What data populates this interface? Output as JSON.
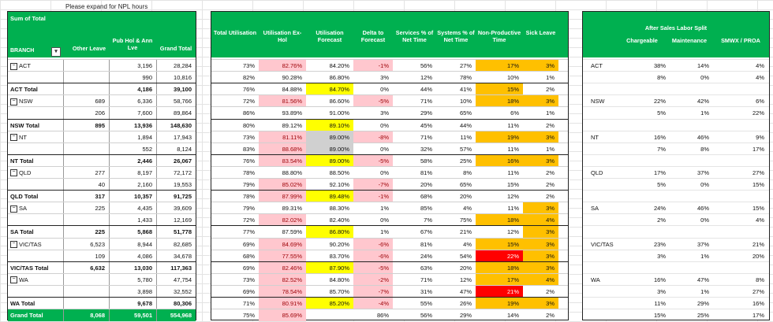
{
  "note": "Please expand for NPL hours",
  "pivot": {
    "title": "Sum of Total",
    "branch_label": "BRANCH",
    "headers": [
      "Other Leave",
      "Pub Hol & Ann Lve",
      "Grand Total"
    ],
    "rows": [
      {
        "label": "ACT",
        "group": true,
        "vals": [
          "",
          "3,196",
          "28,284"
        ]
      },
      {
        "label": "",
        "vals": [
          "",
          "990",
          "10,816"
        ]
      },
      {
        "label": "ACT Total",
        "total": true,
        "vals": [
          "",
          "4,186",
          "39,100"
        ]
      },
      {
        "label": "NSW",
        "group": true,
        "vals": [
          "689",
          "6,336",
          "58,766"
        ]
      },
      {
        "label": "",
        "vals": [
          "206",
          "7,600",
          "89,864"
        ]
      },
      {
        "label": "NSW Total",
        "total": true,
        "vals": [
          "895",
          "13,936",
          "148,630"
        ]
      },
      {
        "label": "NT",
        "group": true,
        "vals": [
          "",
          "1,894",
          "17,943"
        ]
      },
      {
        "label": "",
        "vals": [
          "",
          "552",
          "8,124"
        ]
      },
      {
        "label": "NT Total",
        "total": true,
        "vals": [
          "",
          "2,446",
          "26,067"
        ]
      },
      {
        "label": "QLD",
        "group": true,
        "vals": [
          "277",
          "8,197",
          "72,172"
        ]
      },
      {
        "label": "",
        "vals": [
          "40",
          "2,160",
          "19,553"
        ]
      },
      {
        "label": "QLD Total",
        "total": true,
        "vals": [
          "317",
          "10,357",
          "91,725"
        ]
      },
      {
        "label": "SA",
        "group": true,
        "vals": [
          "225",
          "4,435",
          "39,609"
        ]
      },
      {
        "label": "",
        "vals": [
          "",
          "1,433",
          "12,169"
        ]
      },
      {
        "label": "SA Total",
        "total": true,
        "vals": [
          "225",
          "5,868",
          "51,778"
        ]
      },
      {
        "label": "VIC/TAS",
        "group": true,
        "vals": [
          "6,523",
          "8,944",
          "82,685"
        ]
      },
      {
        "label": "",
        "vals": [
          "109",
          "4,086",
          "34,678"
        ]
      },
      {
        "label": "VIC/TAS Total",
        "total": true,
        "vals": [
          "6,632",
          "13,030",
          "117,363"
        ]
      },
      {
        "label": "WA",
        "group": true,
        "vals": [
          "",
          "5,780",
          "47,754"
        ]
      },
      {
        "label": "",
        "vals": [
          "",
          "3,898",
          "32,552"
        ]
      },
      {
        "label": "WA Total",
        "total": true,
        "vals": [
          "",
          "9,678",
          "80,306"
        ]
      },
      {
        "label": "Grand Total",
        "grand": true,
        "vals": [
          "8,068",
          "59,501",
          "554,968"
        ]
      }
    ]
  },
  "metrics": {
    "headers": [
      "Total Utilisation",
      "Utilisation Ex-Hol",
      "Utilisation Forecast",
      "Delta to Forecast",
      "Services % of Net Time",
      "Systems % of Net Time",
      "Non-Productive Time",
      "Sick Leave"
    ],
    "rows": [
      {
        "v": [
          "73%",
          "82.76%",
          "84.20%",
          "-1%",
          "56%",
          "27%",
          "17%",
          "3%"
        ],
        "c": [
          "",
          "pk",
          "",
          "pk",
          "",
          "",
          "or",
          "or"
        ]
      },
      {
        "v": [
          "82%",
          "90.28%",
          "86.80%",
          "3%",
          "12%",
          "78%",
          "10%",
          "1%"
        ],
        "c": [
          "",
          "",
          "",
          "",
          "",
          "",
          "",
          ""
        ]
      },
      {
        "v": [
          "76%",
          "84.88%",
          "84.70%",
          "0%",
          "44%",
          "41%",
          "15%",
          "2%"
        ],
        "c": [
          "",
          "",
          "ye",
          "",
          "",
          "",
          "or",
          ""
        ]
      },
      {
        "v": [
          "72%",
          "81.56%",
          "86.60%",
          "-5%",
          "71%",
          "10%",
          "18%",
          "3%"
        ],
        "c": [
          "",
          "pk",
          "",
          "pk",
          "",
          "",
          "or",
          "or"
        ]
      },
      {
        "v": [
          "86%",
          "93.89%",
          "91.00%",
          "3%",
          "29%",
          "65%",
          "6%",
          "1%"
        ],
        "c": [
          "",
          "",
          "",
          "",
          "",
          "",
          "",
          ""
        ]
      },
      {
        "v": [
          "80%",
          "89.12%",
          "89.10%",
          "0%",
          "45%",
          "44%",
          "11%",
          "2%"
        ],
        "c": [
          "",
          "",
          "ye",
          "",
          "",
          "",
          "",
          ""
        ]
      },
      {
        "v": [
          "73%",
          "81.11%",
          "89.00%",
          "-8%",
          "71%",
          "11%",
          "19%",
          "3%"
        ],
        "c": [
          "",
          "pk",
          "gr",
          "pk",
          "",
          "",
          "or",
          "or"
        ]
      },
      {
        "v": [
          "83%",
          "88.68%",
          "89.00%",
          "0%",
          "32%",
          "57%",
          "11%",
          "1%"
        ],
        "c": [
          "",
          "pk",
          "gr",
          "",
          "",
          "",
          "",
          ""
        ]
      },
      {
        "v": [
          "76%",
          "83.54%",
          "89.00%",
          "-5%",
          "58%",
          "25%",
          "16%",
          "3%"
        ],
        "c": [
          "",
          "pk",
          "ye",
          "pk",
          "",
          "",
          "or",
          "or"
        ]
      },
      {
        "v": [
          "78%",
          "88.80%",
          "88.50%",
          "0%",
          "81%",
          "8%",
          "11%",
          "2%"
        ],
        "c": [
          "",
          "",
          "",
          "",
          "",
          "",
          "",
          ""
        ]
      },
      {
        "v": [
          "79%",
          "85.02%",
          "92.10%",
          "-7%",
          "20%",
          "65%",
          "15%",
          "2%"
        ],
        "c": [
          "",
          "pk",
          "",
          "pk",
          "",
          "",
          "",
          ""
        ]
      },
      {
        "v": [
          "78%",
          "87.99%",
          "89.48%",
          "-1%",
          "68%",
          "20%",
          "12%",
          "2%"
        ],
        "c": [
          "",
          "pk",
          "ye",
          "pk",
          "",
          "",
          "",
          ""
        ]
      },
      {
        "v": [
          "79%",
          "89.31%",
          "88.30%",
          "1%",
          "85%",
          "4%",
          "11%",
          "3%"
        ],
        "c": [
          "",
          "",
          "",
          "",
          "",
          "",
          "",
          "or"
        ]
      },
      {
        "v": [
          "72%",
          "82.02%",
          "82.40%",
          "0%",
          "7%",
          "75%",
          "18%",
          "4%"
        ],
        "c": [
          "",
          "pk",
          "",
          "",
          "",
          "",
          "or",
          "or"
        ]
      },
      {
        "v": [
          "77%",
          "87.59%",
          "86.80%",
          "1%",
          "67%",
          "21%",
          "12%",
          "3%"
        ],
        "c": [
          "",
          "",
          "ye",
          "",
          "",
          "",
          "",
          "or"
        ]
      },
      {
        "v": [
          "69%",
          "84.69%",
          "90.20%",
          "-6%",
          "81%",
          "4%",
          "15%",
          "3%"
        ],
        "c": [
          "",
          "pk",
          "",
          "pk",
          "",
          "",
          "or",
          "or"
        ]
      },
      {
        "v": [
          "68%",
          "77.55%",
          "83.70%",
          "-6%",
          "24%",
          "54%",
          "22%",
          "3%"
        ],
        "c": [
          "",
          "pk",
          "",
          "pk",
          "",
          "",
          "rd",
          "or"
        ]
      },
      {
        "v": [
          "69%",
          "82.46%",
          "87.90%",
          "-5%",
          "63%",
          "20%",
          "18%",
          "3%"
        ],
        "c": [
          "",
          "pk",
          "ye",
          "pk",
          "",
          "",
          "or",
          "or"
        ]
      },
      {
        "v": [
          "73%",
          "82.52%",
          "84.80%",
          "-2%",
          "71%",
          "12%",
          "17%",
          "4%"
        ],
        "c": [
          "",
          "pk",
          "",
          "pk",
          "",
          "",
          "or",
          "or"
        ]
      },
      {
        "v": [
          "69%",
          "78.54%",
          "85.70%",
          "-7%",
          "31%",
          "47%",
          "21%",
          "2%"
        ],
        "c": [
          "",
          "pk",
          "",
          "pk",
          "",
          "",
          "rd",
          ""
        ]
      },
      {
        "v": [
          "71%",
          "80.91%",
          "85.20%",
          "-4%",
          "55%",
          "26%",
          "19%",
          "3%"
        ],
        "c": [
          "",
          "pk",
          "ye",
          "pk",
          "",
          "",
          "or",
          "or"
        ]
      },
      {
        "v": [
          "75%",
          "85.69%",
          "",
          "86%",
          "56%",
          "29%",
          "14%",
          "2%"
        ],
        "c": [
          "",
          "pk",
          "",
          "",
          "",
          "",
          "",
          ""
        ]
      }
    ]
  },
  "split": {
    "title": "After Sales Labor Split",
    "headers": [
      "Chargeable",
      "Maintenance",
      "SMWX / PROA"
    ],
    "rows": [
      {
        "label": "ACT",
        "v": [
          "38%",
          "14%",
          "4%"
        ]
      },
      {
        "label": "",
        "v": [
          "8%",
          "0%",
          "4%"
        ]
      },
      {
        "label": "",
        "v": [
          "",
          "",
          ""
        ]
      },
      {
        "label": "NSW",
        "v": [
          "22%",
          "42%",
          "6%"
        ]
      },
      {
        "label": "",
        "v": [
          "5%",
          "1%",
          "22%"
        ]
      },
      {
        "label": "",
        "v": [
          "",
          "",
          ""
        ]
      },
      {
        "label": "NT",
        "v": [
          "16%",
          "46%",
          "9%"
        ]
      },
      {
        "label": "",
        "v": [
          "7%",
          "8%",
          "17%"
        ]
      },
      {
        "label": "",
        "v": [
          "",
          "",
          ""
        ]
      },
      {
        "label": "QLD",
        "v": [
          "17%",
          "37%",
          "27%"
        ]
      },
      {
        "label": "",
        "v": [
          "5%",
          "0%",
          "15%"
        ]
      },
      {
        "label": "",
        "v": [
          "",
          "",
          ""
        ]
      },
      {
        "label": "SA",
        "v": [
          "24%",
          "46%",
          "15%"
        ]
      },
      {
        "label": "",
        "v": [
          "2%",
          "0%",
          "4%"
        ]
      },
      {
        "label": "",
        "v": [
          "",
          "",
          ""
        ]
      },
      {
        "label": "VIC/TAS",
        "v": [
          "23%",
          "37%",
          "21%"
        ]
      },
      {
        "label": "",
        "v": [
          "3%",
          "1%",
          "20%"
        ]
      },
      {
        "label": "",
        "v": [
          "",
          "",
          ""
        ]
      },
      {
        "label": "WA",
        "v": [
          "16%",
          "47%",
          "8%"
        ]
      },
      {
        "label": "",
        "v": [
          "3%",
          "1%",
          "27%"
        ]
      },
      {
        "label": "",
        "v": [
          "11%",
          "29%",
          "16%"
        ]
      },
      {
        "label": "",
        "v": [
          "15%",
          "25%",
          "17%"
        ]
      }
    ]
  }
}
